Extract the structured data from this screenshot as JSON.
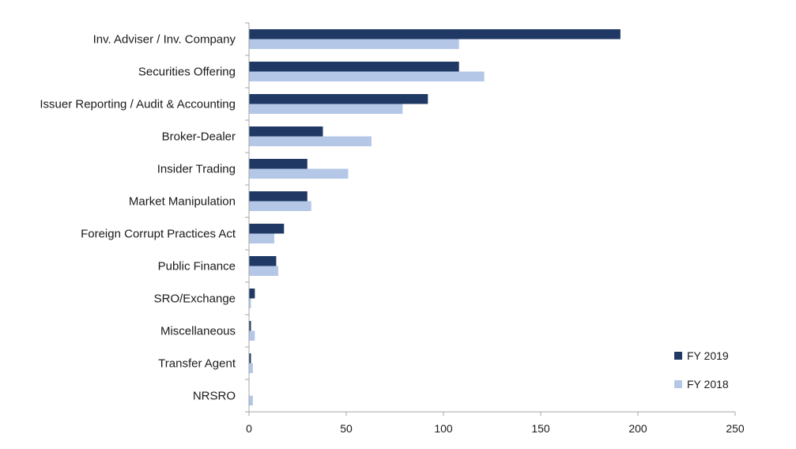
{
  "chart_data": {
    "type": "bar",
    "orientation": "horizontal",
    "categories": [
      "Inv. Adviser / Inv. Company",
      "Securities Offering",
      "Issuer Reporting / Audit & Accounting",
      "Broker-Dealer",
      "Insider Trading",
      "Market Manipulation",
      "Foreign Corrupt Practices Act",
      "Public Finance",
      "SRO/Exchange",
      "Miscellaneous",
      "Transfer Agent",
      "NRSRO"
    ],
    "series": [
      {
        "name": "FY 2019",
        "color": "#1f3864",
        "values": [
          191,
          108,
          92,
          38,
          30,
          30,
          18,
          14,
          3,
          1,
          1,
          0
        ]
      },
      {
        "name": "FY 2018",
        "color": "#b4c7e7",
        "values": [
          108,
          121,
          79,
          63,
          51,
          32,
          13,
          15,
          1,
          3,
          2,
          2
        ]
      }
    ],
    "xlim": [
      0,
      250
    ],
    "xticks": [
      "0",
      "50",
      "100",
      "150",
      "200",
      "250"
    ],
    "title": "",
    "xlabel": "",
    "ylabel": "",
    "grid": false,
    "legend_position": "bottom-right"
  }
}
